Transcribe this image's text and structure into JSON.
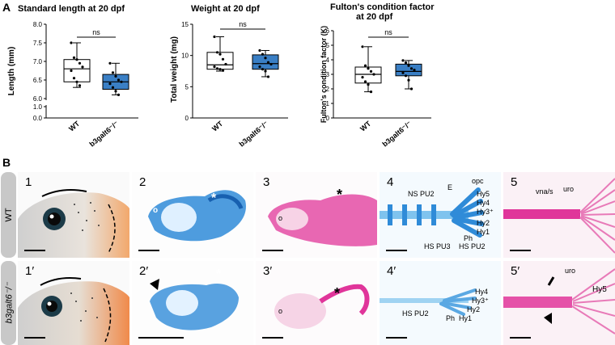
{
  "panels": {
    "a": "A",
    "b": "B"
  },
  "colors": {
    "wt_box": "#ffffff",
    "mut_box": "#3a7fc5",
    "alcian": "#2f8bd8",
    "alizarin": "#e0359a"
  },
  "charts": [
    {
      "title": "Standard length at 20 dpf",
      "ylabel": "Length (mm)",
      "sig": "ns",
      "ticks": [
        "0.0",
        "1.0",
        "6.0",
        "6.5",
        "7.0",
        "7.5",
        "8.0"
      ],
      "categories": [
        "WT",
        "b3galt6⁻/⁻"
      ]
    },
    {
      "title": "Weight at 20 dpf",
      "ylabel": "Total weight (mg)",
      "sig": "ns",
      "ticks": [
        "0",
        "5",
        "10",
        "15"
      ],
      "categories": [
        "WT",
        "b3galt6⁻/⁻"
      ]
    },
    {
      "title": "Fulton's condition factor",
      "title2": "at 20 dpf",
      "ylabel": "Fulton's condition factor (K)",
      "sig": "ns",
      "ticks": [
        "0",
        "1",
        "2",
        "3",
        "4",
        "5",
        "6"
      ],
      "categories": [
        "WT",
        "b3galt6⁻/⁻"
      ]
    }
  ],
  "chart_data": [
    {
      "type": "box",
      "title": "Standard length at 20 dpf",
      "ylabel": "Length (mm)",
      "axis_break": [
        1.0,
        6.0
      ],
      "ylim": [
        6.0,
        8.0
      ],
      "categories": [
        "WT",
        "b3galt6⁻/⁻"
      ],
      "series": [
        {
          "min": 6.3,
          "q1": 6.45,
          "median": 6.8,
          "q3": 7.05,
          "max": 7.5,
          "points": [
            7.5,
            7.1,
            7.05,
            6.95,
            6.85,
            6.75,
            6.55,
            6.45,
            6.35
          ]
        },
        {
          "min": 6.1,
          "q1": 6.25,
          "median": 6.45,
          "q3": 6.65,
          "max": 6.95,
          "points": [
            6.95,
            6.7,
            6.6,
            6.5,
            6.45,
            6.4,
            6.3,
            6.2,
            6.1
          ]
        }
      ]
    },
    {
      "type": "box",
      "title": "Weight at 20 dpf",
      "ylabel": "Total weight (mg)",
      "ylim": [
        0,
        15
      ],
      "categories": [
        "WT",
        "b3galt6⁻/⁻"
      ],
      "series": [
        {
          "min": 7.5,
          "q1": 7.8,
          "median": 8.5,
          "q3": 10.5,
          "max": 13,
          "points": [
            13.0,
            10.5,
            10.2,
            9.4,
            8.6,
            8.2,
            7.9,
            7.8,
            7.6
          ]
        },
        {
          "min": 6.6,
          "q1": 7.8,
          "median": 8.7,
          "q3": 10.1,
          "max": 10.8,
          "points": [
            10.8,
            10.2,
            9.6,
            8.9,
            8.6,
            8.2,
            7.8,
            7.5,
            6.6
          ]
        }
      ]
    },
    {
      "type": "box",
      "title": "Fulton's condition factor at 20 dpf",
      "ylabel": "Fulton's condition factor (K)",
      "ylim": [
        0,
        6
      ],
      "categories": [
        "WT",
        "b3galt6⁻/⁻"
      ],
      "series": [
        {
          "min": 1.8,
          "q1": 2.4,
          "median": 3.0,
          "q3": 3.5,
          "max": 4.9,
          "points": [
            4.9,
            3.6,
            3.4,
            3.2,
            3.0,
            2.8,
            2.5,
            2.3,
            1.8
          ]
        },
        {
          "min": 2.0,
          "q1": 2.9,
          "median": 3.2,
          "q3": 3.7,
          "max": 3.95,
          "points": [
            3.95,
            3.8,
            3.6,
            3.4,
            3.3,
            3.1,
            2.9,
            2.6,
            2.0
          ]
        }
      ]
    }
  ],
  "row_labels": {
    "wt": "WT",
    "mut": "b3galt6⁻/⁻"
  },
  "tiles_top": [
    {
      "num": "1"
    },
    {
      "num": "2"
    },
    {
      "num": "3"
    },
    {
      "num": "4"
    },
    {
      "num": "5"
    }
  ],
  "tiles_bottom": [
    {
      "num": "1′"
    },
    {
      "num": "2′"
    },
    {
      "num": "3′"
    },
    {
      "num": "4′"
    },
    {
      "num": "5′"
    }
  ],
  "annotations": {
    "o": "o",
    "star": "*",
    "t4": [
      "opc",
      "E",
      "NS PU2",
      "Hy5",
      "Hy4",
      "Hy3⁺",
      "Hy2",
      "Hy1",
      "Ph",
      "HS PU3",
      "HS PU2"
    ],
    "t5": [
      "vna/s",
      "uro"
    ],
    "b4": [
      "Hy4",
      "Hy3⁺",
      "Hy2",
      "Hy1",
      "Ph",
      "HS PU2"
    ],
    "b5": [
      "uro",
      "Hy5"
    ]
  }
}
